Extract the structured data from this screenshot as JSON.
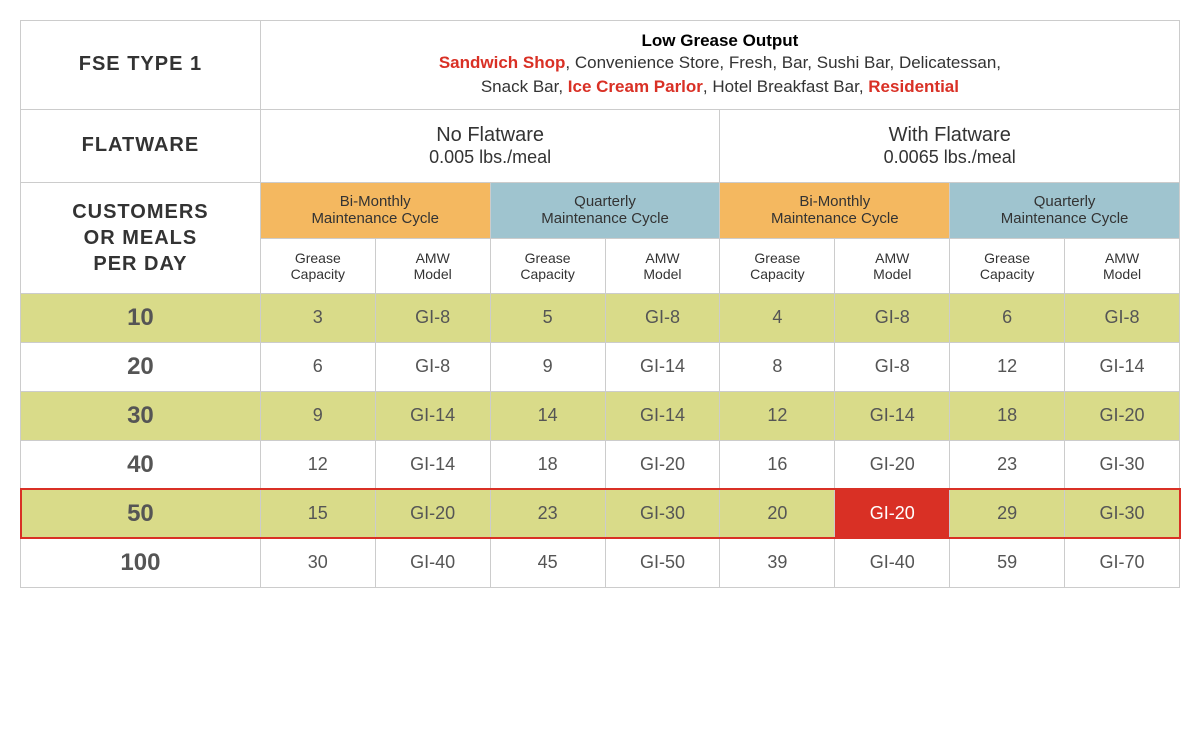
{
  "header": {
    "fse_label": "FSE TYPE 1",
    "title": "Low Grease Output",
    "desc_parts": [
      {
        "text": "Sandwich Shop",
        "red": true
      },
      {
        "text": ", Convenience Store, Fresh, Bar, Sushi Bar, Delicatessan,",
        "red": false
      },
      {
        "text": "Snack Bar, ",
        "red": false,
        "break_before": true
      },
      {
        "text": "Ice Cream Parlor",
        "red": true
      },
      {
        "text": ", Hotel Breakfast Bar, ",
        "red": false
      },
      {
        "text": "Residential",
        "red": true
      }
    ]
  },
  "flatware": {
    "label": "FLATWARE",
    "no": {
      "title": "No Flatware",
      "rate": "0.005 lbs./meal"
    },
    "with": {
      "title": "With Flatware",
      "rate": "0.0065 lbs./meal"
    }
  },
  "customers_label": "CUSTOMERS OR MEALS PER DAY",
  "cycles": {
    "bimonthly": "Bi-Monthly Maintenance Cycle",
    "quarterly": "Quarterly Maintenance Cycle"
  },
  "subheaders": {
    "grease": "Grease Capacity",
    "amw": "AMW Model"
  },
  "rows": [
    {
      "meals": "10",
      "stripe": "odd",
      "cells": [
        "3",
        "GI-8",
        "5",
        "GI-8",
        "4",
        "GI-8",
        "6",
        "GI-8"
      ]
    },
    {
      "meals": "20",
      "stripe": "even",
      "cells": [
        "6",
        "GI-8",
        "9",
        "GI-14",
        "8",
        "GI-8",
        "12",
        "GI-14"
      ]
    },
    {
      "meals": "30",
      "stripe": "odd",
      "cells": [
        "9",
        "GI-14",
        "14",
        "GI-14",
        "12",
        "GI-14",
        "18",
        "GI-20"
      ]
    },
    {
      "meals": "40",
      "stripe": "even",
      "cells": [
        "12",
        "GI-14",
        "18",
        "GI-20",
        "16",
        "GI-20",
        "23",
        "GI-30"
      ]
    },
    {
      "meals": "50",
      "stripe": "odd",
      "highlight_row": true,
      "cells": [
        "15",
        "GI-20",
        "23",
        "GI-30",
        "20",
        "GI-20",
        "29",
        "GI-30"
      ],
      "highlight_cell_index": 5
    },
    {
      "meals": "100",
      "stripe": "even",
      "cells": [
        "30",
        "GI-40",
        "45",
        "GI-50",
        "39",
        "GI-40",
        "59",
        "GI-70"
      ]
    }
  ],
  "colors": {
    "bimonthly_bg": "#f4b860",
    "quarterly_bg": "#9fc4cf",
    "stripe_odd": "#d9db89",
    "red": "#d93025"
  }
}
